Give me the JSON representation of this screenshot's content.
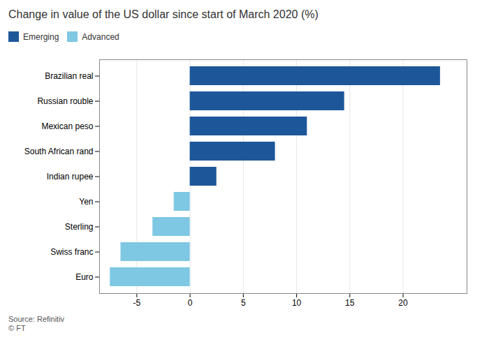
{
  "chart_data": {
    "type": "bar",
    "orientation": "horizontal",
    "title": "Change in value of the US dollar since start of March 2020 (%)",
    "categories": [
      "Brazilian real",
      "Russian rouble",
      "Mexican peso",
      "South African rand",
      "Indian rupee",
      "Yen",
      "Sterling",
      "Swiss franc",
      "Euro"
    ],
    "series": [
      {
        "name": "Emerging",
        "color": "#1e5799",
        "values": [
          23.5,
          14.5,
          11.0,
          8.0,
          2.5,
          null,
          null,
          null,
          null
        ]
      },
      {
        "name": "Advanced",
        "color": "#7ec8e3",
        "values": [
          null,
          null,
          null,
          null,
          null,
          -1.5,
          -3.5,
          -6.5,
          -7.5
        ]
      }
    ],
    "xlim": [
      -8.5,
      26
    ],
    "xticks": [
      -5,
      0,
      5,
      10,
      15,
      20
    ],
    "grid": true,
    "legend": "top",
    "source": "Source: Refinitiv",
    "footer": "© FT"
  }
}
